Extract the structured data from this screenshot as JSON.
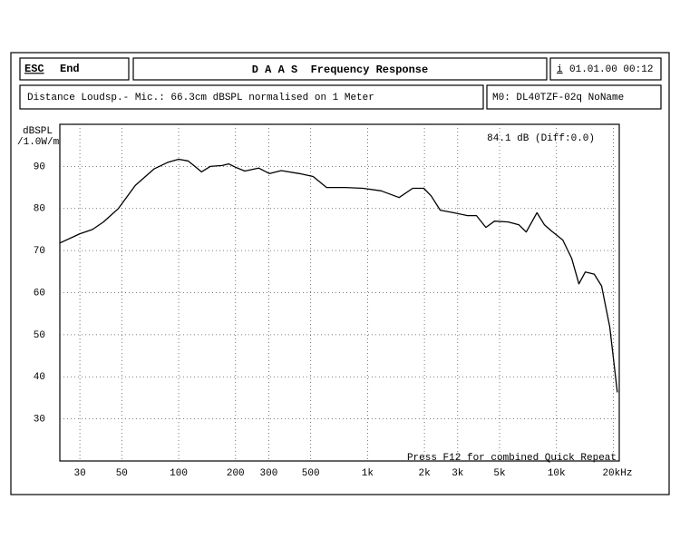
{
  "header": {
    "esc_key": "ESC",
    "esc_action": "End",
    "title": "D A A S  Frequency Response",
    "info_key": "i",
    "datetime": "01.01.00 00:12",
    "measurement_info": "Distance Loudsp.- Mic.: 66.3cm dBSPL normalised on 1 Meter",
    "model": "M0: DL40TZF-02q NoName"
  },
  "chart_data": {
    "type": "line",
    "y_label_line1": "dBSPL",
    "y_label_line2": "/1.0W/m",
    "annotation": "84.1 dB (Diff:0.0)",
    "footer_note": "Press F12 for combined Quick Repeat",
    "x_scale": "log",
    "grid": true,
    "color": "#000000",
    "xlim": [
      23.5,
      21500
    ],
    "ylim": [
      20,
      100
    ],
    "xticks": [
      30,
      50,
      100,
      200,
      300,
      500,
      {
        "value": 1000,
        "label": "1k"
      },
      {
        "value": 2000,
        "label": "2k"
      },
      {
        "value": 3000,
        "label": "3k"
      },
      {
        "value": 5000,
        "label": "5k"
      },
      {
        "value": 10000,
        "label": "10k"
      },
      {
        "value": 20000,
        "label": "20kHz"
      }
    ],
    "yticks": [
      30,
      40,
      50,
      60,
      70,
      80,
      90
    ],
    "x": [
      23.5,
      30,
      35,
      40,
      48,
      59,
      74,
      88,
      100,
      112,
      122,
      132,
      147,
      170,
      184,
      200,
      224,
      265,
      303,
      349,
      436,
      515,
      607,
      760,
      945,
      1180,
      1470,
      1735,
      1985,
      2170,
      2425,
      2850,
      3380,
      3770,
      4230,
      4700,
      5550,
      6330,
      6920,
      7880,
      8640,
      9440,
      10800,
      12050,
      13150,
      14200,
      15850,
      17340,
      19150,
      21000
    ],
    "values": [
      71.8,
      74,
      75,
      76.8,
      80,
      85.5,
      89.4,
      91,
      91.7,
      91.3,
      90,
      88.7,
      90,
      90.2,
      90.6,
      89.8,
      88.9,
      89.6,
      88.3,
      89,
      88.3,
      87.6,
      85,
      85,
      84.8,
      84.2,
      82.6,
      84.8,
      84.8,
      83,
      79.6,
      79,
      78.3,
      78.3,
      75.5,
      77,
      76.8,
      76.1,
      74.4,
      79,
      76.1,
      74.6,
      72.5,
      68.1,
      62.1,
      64.9,
      64.4,
      61.6,
      51.9,
      36.3
    ]
  }
}
